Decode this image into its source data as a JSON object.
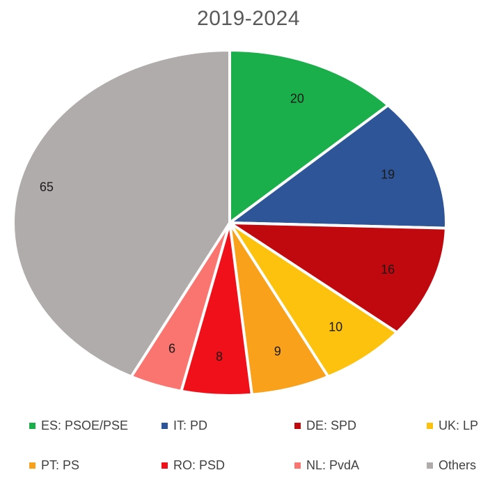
{
  "chart_data": {
    "type": "pie",
    "title": "2019-2024",
    "start_angle_deg": 0,
    "direction": "clockwise",
    "slices": [
      {
        "label": "ES: PSOE/PSE",
        "value": 20,
        "color": "#1aaf4b"
      },
      {
        "label": "IT: PD",
        "value": 19,
        "color": "#2e5597"
      },
      {
        "label": "DE: SPD",
        "value": 16,
        "color": "#c0080f"
      },
      {
        "label": "UK: LP",
        "value": 10,
        "color": "#fdc20e"
      },
      {
        "label": "PT: PS",
        "value": 9,
        "color": "#f9a11b"
      },
      {
        "label": "RO: PSD",
        "value": 8,
        "color": "#f0101a"
      },
      {
        "label": "NL: PvdA",
        "value": 6,
        "color": "#fa7570"
      },
      {
        "label": "Others",
        "value": 65,
        "color": "#b1acac"
      }
    ],
    "legend": {
      "position": "bottom",
      "columns": 4
    }
  }
}
